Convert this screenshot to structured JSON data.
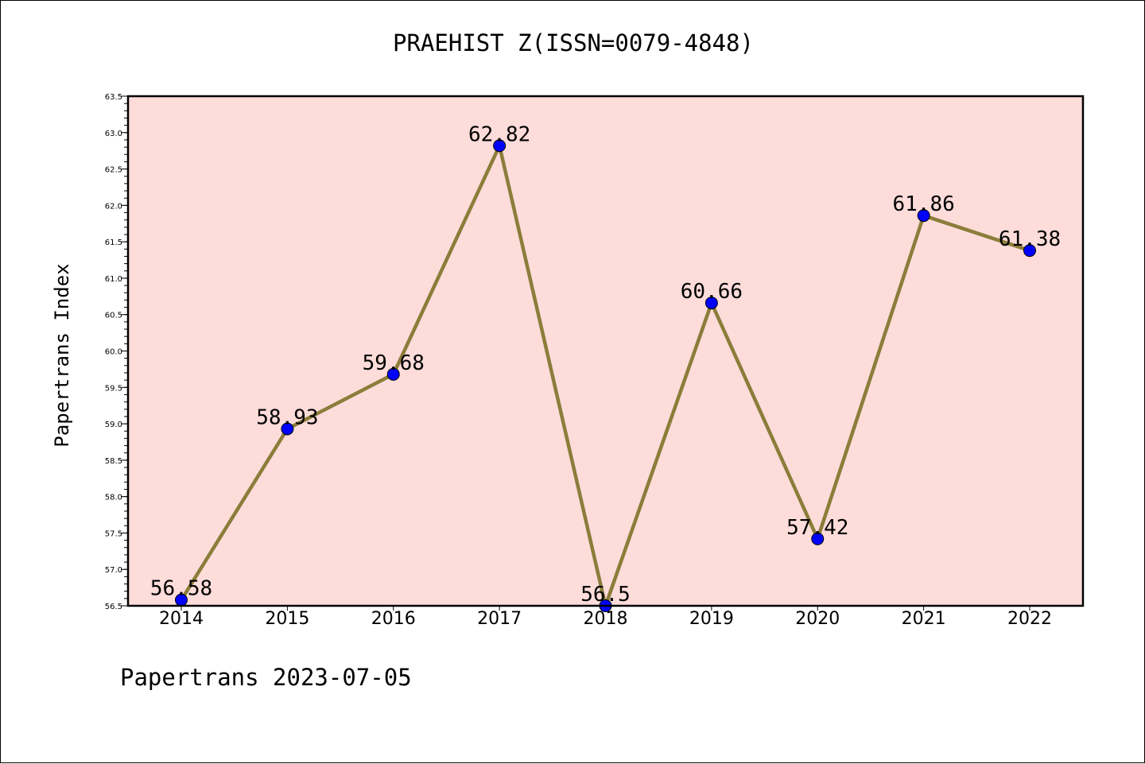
{
  "chart_data": {
    "type": "line",
    "title": "PRAEHIST Z(ISSN=0079-4848)",
    "xlabel": "",
    "ylabel": "Papertrans Index",
    "categories": [
      "2014",
      "2015",
      "2016",
      "2017",
      "2018",
      "2019",
      "2020",
      "2021",
      "2022"
    ],
    "series": [
      {
        "values": [
          56.58,
          58.93,
          59.68,
          62.82,
          56.5,
          60.66,
          57.42,
          61.86,
          61.38
        ],
        "data_labels": [
          "56.58",
          "58.93",
          "59.68",
          "62.82",
          "56.5",
          "60.66",
          "57.42",
          "61.86",
          "61.38"
        ],
        "line_color": "#8b7d3a",
        "marker_color": "#0000ff"
      }
    ],
    "ylim": [
      56.5,
      63.5
    ],
    "yticks": [
      "56.5",
      "57.0",
      "57.5",
      "58.0",
      "58.5",
      "59.0",
      "59.5",
      "60.0",
      "60.5",
      "61.0",
      "61.5",
      "62.0",
      "62.5",
      "63.0",
      "63.5"
    ],
    "grid": false,
    "legend": "none",
    "plot_background": "#fddcda"
  },
  "footer": "Papertrans 2023-07-05"
}
